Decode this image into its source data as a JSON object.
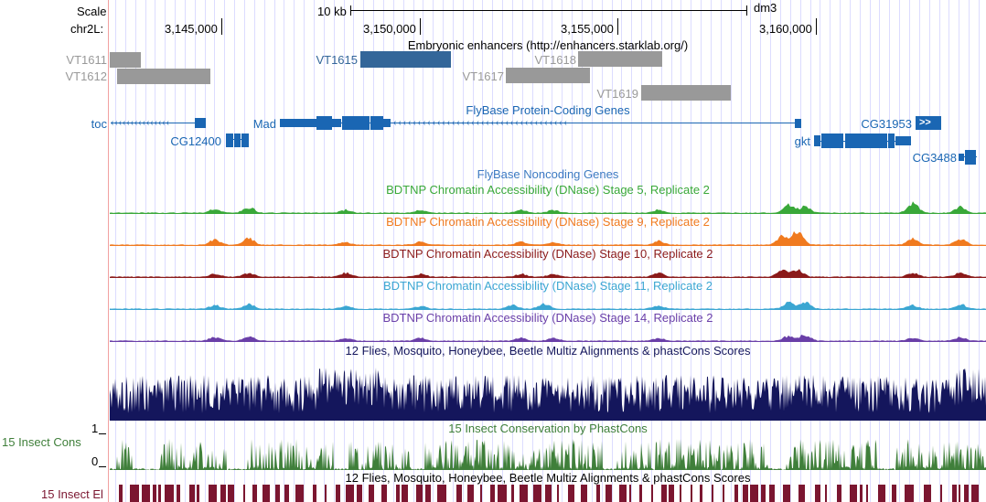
{
  "ruler": {
    "scale_label": "Scale",
    "chrom_label": "chr2L:",
    "scale_bar_label": "10 kb",
    "assembly": "dm3",
    "ticks": [
      "3,145,000",
      "3,150,000",
      "3,155,000",
      "3,160,000"
    ]
  },
  "tracks": {
    "enhancers": {
      "title": "Embryonic enhancers (http://enhancers.starklab.org/)",
      "items": [
        "VT1611",
        "VT1612",
        "VT1615",
        "VT1617",
        "VT1618",
        "VT1619"
      ],
      "colors": {
        "default": "#999999",
        "highlight": "#336699"
      }
    },
    "flybase_coding": {
      "title": "FlyBase Protein-Coding Genes",
      "genes": [
        "toc",
        "CG12400",
        "Mad",
        "gkt",
        "CG31953",
        "CG3488"
      ],
      "color": "#1a66b3"
    },
    "flybase_noncoding": {
      "title": "FlyBase Noncoding Genes",
      "color": "#3d7ac2"
    },
    "dnase": [
      {
        "title": "BDTNP Chromatin Accessibility (DNase) Stage 5, Replicate 2",
        "color": "#39a839"
      },
      {
        "title": "BDTNP Chromatin Accessibility (DNase) Stage 9, Replicate 2",
        "color": "#f07a1f"
      },
      {
        "title": "BDTNP Chromatin Accessibility (DNase) Stage 10, Replicate 2",
        "color": "#8b1a1a"
      },
      {
        "title": "BDTNP Chromatin Accessibility (DNase) Stage 11, Replicate 2",
        "color": "#3ba6d2"
      },
      {
        "title": "BDTNP Chromatin Accessibility (DNase) Stage 14, Replicate 2",
        "color": "#6a3fa8"
      }
    ],
    "multiz": {
      "title": "12 Flies, Mosquito, Honeybee, Beetle Multiz Alignments & phastCons Scores",
      "color": "#14165c"
    },
    "insect_cons": {
      "title": "15 Insect Conservation by PhastCons",
      "side_label": "15 Insect Cons",
      "axis_max": "1",
      "axis_min": "0",
      "color": "#3f7f3a"
    },
    "insect_el": {
      "title": "12 Flies, Mosquito, Honeybee, Beetle Multiz Alignments & phastCons Scores",
      "side_label": "15 Insect El",
      "color": "#7b1630"
    }
  }
}
